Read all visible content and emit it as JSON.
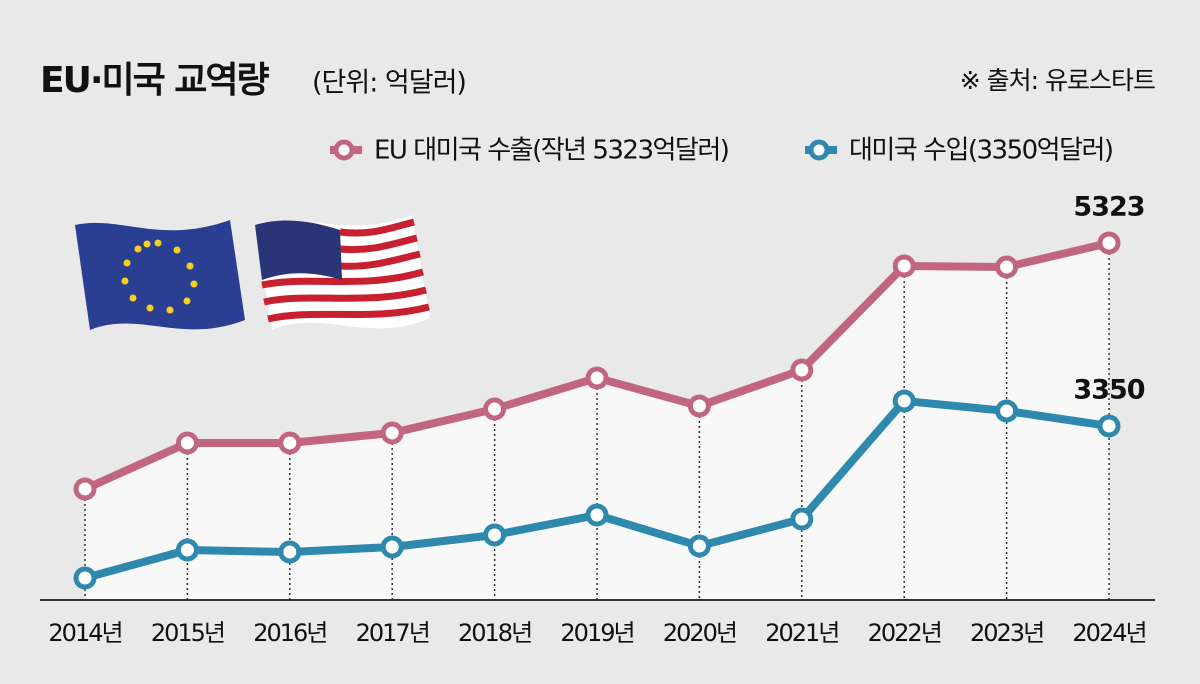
{
  "chart_data": {
    "type": "line",
    "title": "EU·미국 교역량",
    "subtitle": "(단위: 억달러)",
    "source": "※ 출처: 유로스타트",
    "categories": [
      "2014년",
      "2015년",
      "2016년",
      "2017년",
      "2018년",
      "2019년",
      "2020년",
      "2021년",
      "2022년",
      "2023년",
      "2024년"
    ],
    "series": [
      {
        "name": "EU 대미국 수출(작년 5323억달러)",
        "color": "#c26680",
        "values": [
          2671,
          3167,
          3167,
          3275,
          3533,
          3868,
          3566,
          3954,
          5075,
          5064,
          5323
        ]
      },
      {
        "name": "대미국 수입(3350억달러)",
        "color": "#2f88ad",
        "values": [
          1711,
          2013,
          1991,
          2045,
          2175,
          2390,
          2056,
          2347,
          3620,
          3512,
          3350
        ]
      }
    ]
  }
}
